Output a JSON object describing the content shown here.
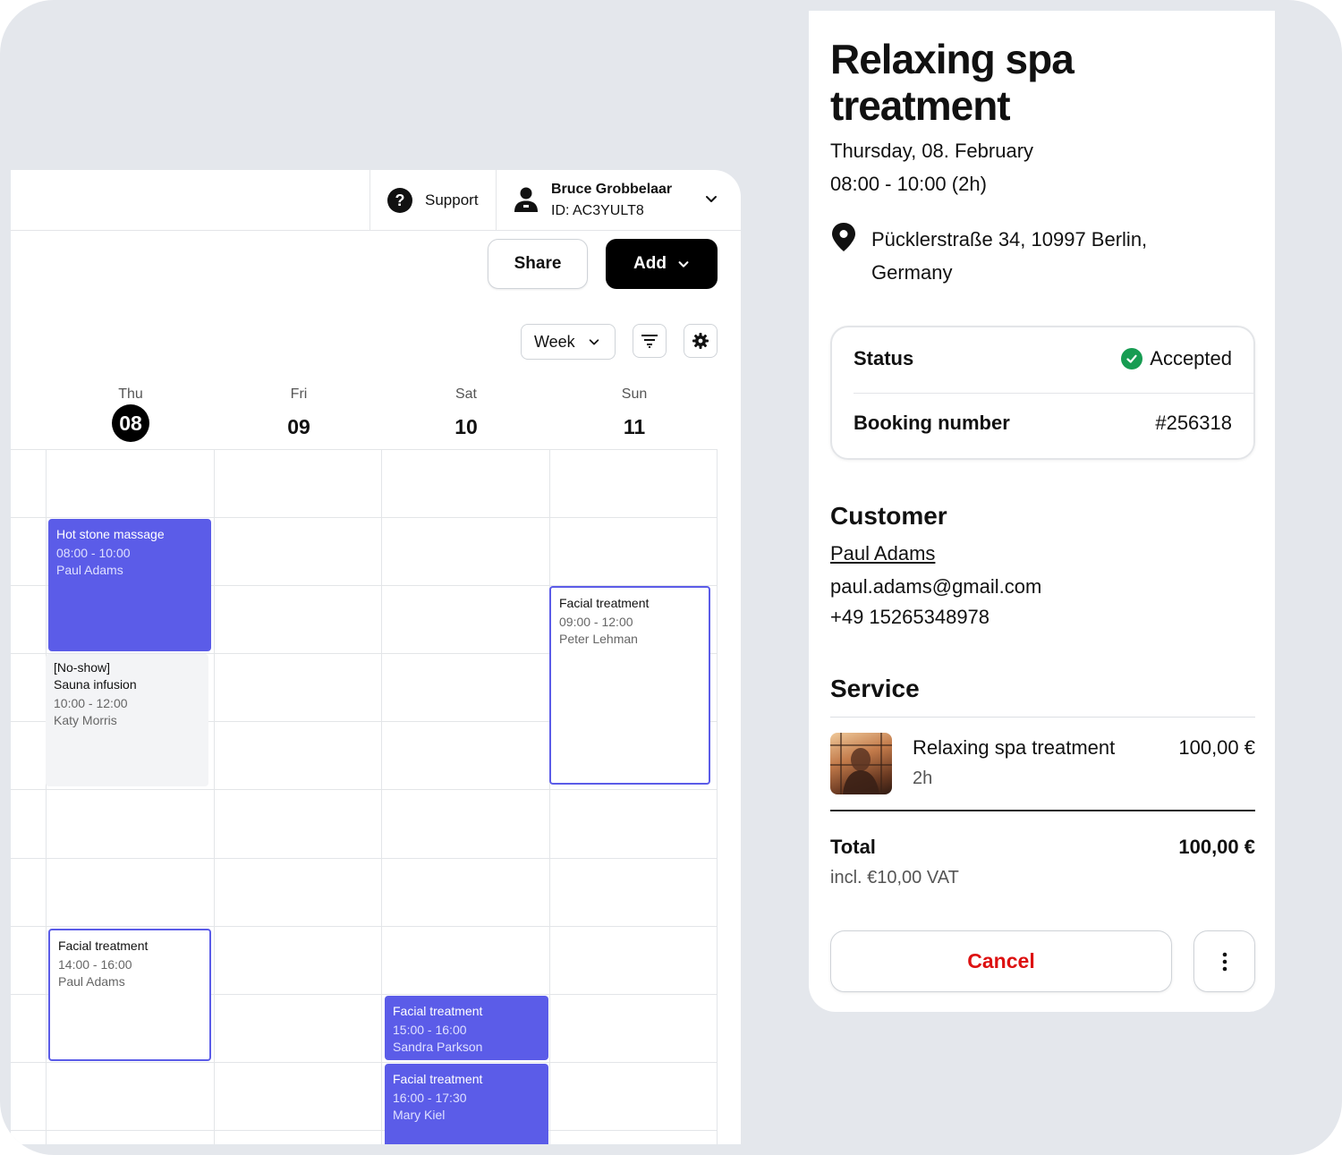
{
  "header": {
    "support_label": "Support",
    "user_name": "Bruce Grobbelaar",
    "user_id": "ID: AC3YULT8"
  },
  "toolbar": {
    "share_label": "Share",
    "add_label": "Add",
    "view_select": "Week"
  },
  "days": [
    {
      "name": "Thu",
      "num": "08",
      "today": true
    },
    {
      "name": "Fri",
      "num": "09",
      "today": false
    },
    {
      "name": "Sat",
      "num": "10",
      "today": false
    },
    {
      "name": "Sun",
      "num": "11",
      "today": false
    }
  ],
  "events": [
    {
      "title": "Hot stone massage",
      "time": "08:00 - 10:00",
      "person": "Paul Adams",
      "style": "filled"
    },
    {
      "prefix": "[No-show]",
      "title": "Sauna infusion",
      "time": "10:00 - 12:00",
      "person": "Katy Morris",
      "style": "muted"
    },
    {
      "title": "Facial treatment",
      "time": "09:00 - 12:00",
      "person": "Peter Lehman",
      "style": "outline"
    },
    {
      "title": "Facial treatment",
      "time": "14:00 - 16:00",
      "person": "Paul Adams",
      "style": "outline"
    },
    {
      "title": "Facial treatment",
      "time": "15:00 - 16:00",
      "person": "Sandra Parkson",
      "style": "filled"
    },
    {
      "title": "Facial treatment",
      "time": "16:00 - 17:30",
      "person": "Mary Kiel",
      "style": "filled"
    }
  ],
  "details": {
    "title": "Relaxing spa treatment",
    "date": "Thursday, 08. February",
    "time": "08:00 - 10:00 (2h)",
    "address": "Pücklerstraße 34, 10997 Berlin, Germany",
    "status_label": "Status",
    "status_value": "Accepted",
    "booking_label": "Booking number",
    "booking_value": "#256318",
    "customer_heading": "Customer",
    "customer_name": "Paul Adams",
    "customer_email": "paul.adams@gmail.com",
    "customer_phone": "+49 15265348978",
    "service_heading": "Service",
    "service_name": "Relaxing spa treatment",
    "service_duration": "2h",
    "service_price": "100,00 €",
    "total_label": "Total",
    "total_price": "100,00 €",
    "total_vat": "incl. €10,00 VAT",
    "cancel_label": "Cancel"
  },
  "colors": {
    "event_accent": "#5b5ce8",
    "status_green": "#179c52",
    "cancel_red": "#dd1111"
  }
}
